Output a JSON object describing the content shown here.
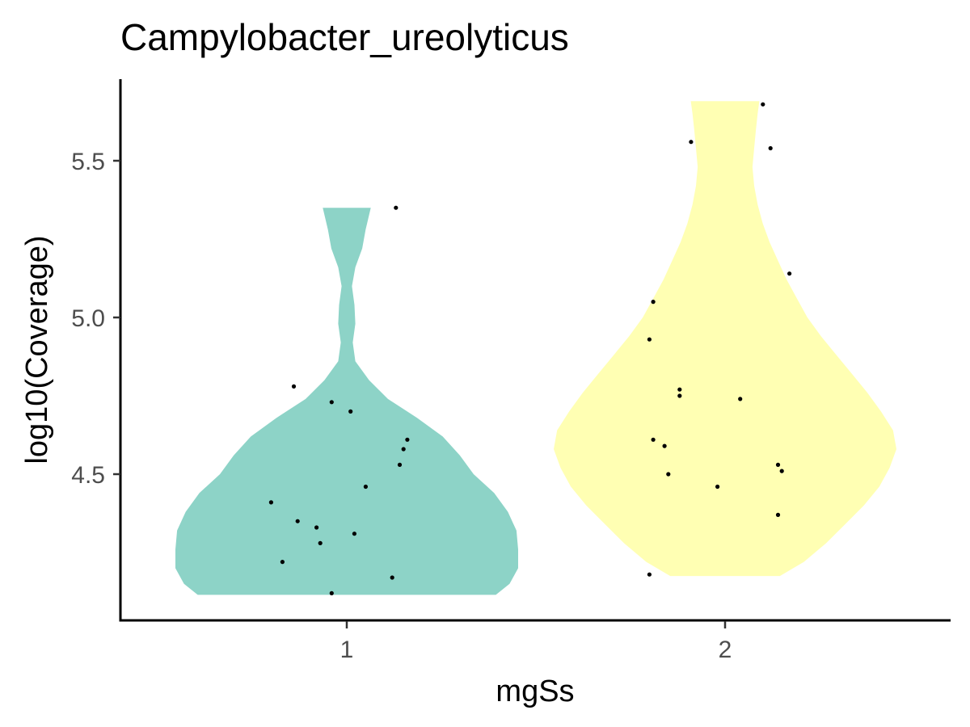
{
  "chart_data": {
    "type": "violin",
    "title": "Campylobacter_ureolyticus",
    "xlabel": "mgSs",
    "ylabel": "log10(Coverage)",
    "categories": [
      "1",
      "2"
    ],
    "yticks": [
      4.5,
      5.0,
      5.5
    ],
    "ytick_labels": [
      "4.5",
      "5.0",
      "5.5"
    ],
    "ylim": [
      4.06,
      5.76
    ],
    "grid": false,
    "legend": "none",
    "colors": {
      "1": "#8dd3c7",
      "2": "#ffffb3"
    },
    "point_color": "#000000",
    "series": [
      {
        "category": "1",
        "density": [
          [
            4.115,
            0.87
          ],
          [
            4.15,
            0.95
          ],
          [
            4.2,
            1.0
          ],
          [
            4.26,
            1.0
          ],
          [
            4.32,
            0.99
          ],
          [
            4.38,
            0.94
          ],
          [
            4.44,
            0.86
          ],
          [
            4.5,
            0.74
          ],
          [
            4.56,
            0.66
          ],
          [
            4.62,
            0.56
          ],
          [
            4.68,
            0.41
          ],
          [
            4.74,
            0.24
          ],
          [
            4.8,
            0.13
          ],
          [
            4.86,
            0.05
          ],
          [
            4.92,
            0.035
          ],
          [
            4.98,
            0.05
          ],
          [
            5.04,
            0.045
          ],
          [
            5.1,
            0.03
          ],
          [
            5.16,
            0.05
          ],
          [
            5.22,
            0.09
          ],
          [
            5.28,
            0.11
          ],
          [
            5.35,
            0.14
          ]
        ],
        "points": [
          [
            -0.2,
            4.41
          ],
          [
            -0.17,
            4.22
          ],
          [
            -0.14,
            4.78
          ],
          [
            -0.13,
            4.35
          ],
          [
            -0.08,
            4.33
          ],
          [
            -0.07,
            4.28
          ],
          [
            -0.04,
            4.12
          ],
          [
            -0.04,
            4.73
          ],
          [
            0.01,
            4.7
          ],
          [
            0.02,
            4.31
          ],
          [
            0.05,
            4.46
          ],
          [
            0.12,
            4.17
          ],
          [
            0.13,
            5.35
          ],
          [
            0.14,
            4.53
          ],
          [
            0.15,
            4.58
          ],
          [
            0.16,
            4.61
          ]
        ]
      },
      {
        "category": "2",
        "density": [
          [
            4.175,
            0.32
          ],
          [
            4.22,
            0.46
          ],
          [
            4.28,
            0.59
          ],
          [
            4.34,
            0.7
          ],
          [
            4.4,
            0.81
          ],
          [
            4.46,
            0.9
          ],
          [
            4.52,
            0.96
          ],
          [
            4.58,
            1.0
          ],
          [
            4.64,
            0.98
          ],
          [
            4.7,
            0.91
          ],
          [
            4.76,
            0.83
          ],
          [
            4.82,
            0.74
          ],
          [
            4.88,
            0.65
          ],
          [
            4.94,
            0.56
          ],
          [
            5.0,
            0.48
          ],
          [
            5.06,
            0.42
          ],
          [
            5.12,
            0.36
          ],
          [
            5.18,
            0.31
          ],
          [
            5.24,
            0.26
          ],
          [
            5.3,
            0.22
          ],
          [
            5.36,
            0.19
          ],
          [
            5.42,
            0.17
          ],
          [
            5.48,
            0.16
          ],
          [
            5.54,
            0.17
          ],
          [
            5.6,
            0.18
          ],
          [
            5.65,
            0.19
          ],
          [
            5.69,
            0.2
          ]
        ],
        "points": [
          [
            -0.2,
            4.18
          ],
          [
            -0.2,
            4.93
          ],
          [
            -0.19,
            5.05
          ],
          [
            -0.19,
            4.61
          ],
          [
            -0.16,
            4.59
          ],
          [
            -0.15,
            4.5
          ],
          [
            -0.12,
            4.75
          ],
          [
            -0.12,
            4.77
          ],
          [
            -0.09,
            5.56
          ],
          [
            -0.02,
            4.46
          ],
          [
            0.04,
            4.74
          ],
          [
            0.1,
            5.68
          ],
          [
            0.12,
            5.54
          ],
          [
            0.14,
            4.37
          ],
          [
            0.14,
            4.53
          ],
          [
            0.15,
            4.51
          ],
          [
            0.17,
            5.14
          ]
        ]
      }
    ]
  }
}
